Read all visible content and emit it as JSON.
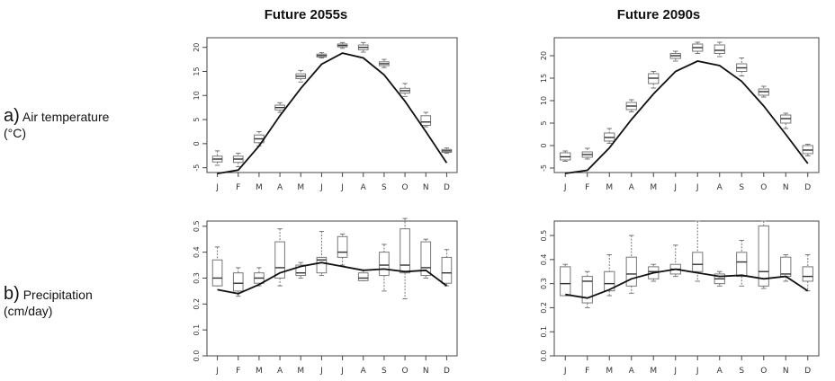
{
  "columns": [
    "Future 2055s",
    "Future 2090s"
  ],
  "rows": [
    {
      "prefix": "a)",
      "label": "Air temperature",
      "unit": "(°C)"
    },
    {
      "prefix": "b)",
      "label": "Precipitation",
      "unit": "(cm/day)"
    }
  ],
  "chart_data": [
    {
      "type": "box",
      "panel": "a-2055s",
      "categories": [
        "J",
        "F",
        "M",
        "A",
        "M",
        "J",
        "J",
        "A",
        "S",
        "O",
        "N",
        "D"
      ],
      "ylim": [
        -6,
        22
      ],
      "yticks": [
        -5,
        0,
        5,
        10,
        15,
        20
      ],
      "line": [
        -6.2,
        -5.5,
        -0.5,
        5.8,
        11.5,
        16.5,
        18.8,
        17.8,
        14.3,
        8.8,
        2.5,
        -4.0
      ],
      "boxes": [
        {
          "min": -4.5,
          "q1": -3.8,
          "median": -3.2,
          "q3": -2.6,
          "max": -1.5
        },
        {
          "min": -4.8,
          "q1": -3.9,
          "median": -3.2,
          "q3": -2.6,
          "max": -2.0
        },
        {
          "min": -0.5,
          "q1": 0.2,
          "median": 1.0,
          "q3": 1.8,
          "max": 2.5
        },
        {
          "min": 6.5,
          "q1": 7.0,
          "median": 7.5,
          "q3": 8.0,
          "max": 8.5
        },
        {
          "min": 12.8,
          "q1": 13.5,
          "median": 14.0,
          "q3": 14.5,
          "max": 15.2
        },
        {
          "min": 17.8,
          "q1": 18.0,
          "median": 18.3,
          "q3": 18.6,
          "max": 18.9
        },
        {
          "min": 19.8,
          "q1": 20.1,
          "median": 20.4,
          "q3": 20.7,
          "max": 21.0
        },
        {
          "min": 19.0,
          "q1": 19.5,
          "median": 20.0,
          "q3": 20.5,
          "max": 21.0
        },
        {
          "min": 15.8,
          "q1": 16.2,
          "median": 16.6,
          "q3": 17.0,
          "max": 17.5
        },
        {
          "min": 9.8,
          "q1": 10.5,
          "median": 11.0,
          "q3": 11.5,
          "max": 12.5
        },
        {
          "min": 3.5,
          "q1": 3.8,
          "median": 4.5,
          "q3": 5.8,
          "max": 6.5
        },
        {
          "min": -2.0,
          "q1": -1.8,
          "median": -1.5,
          "q3": -1.2,
          "max": -0.9
        }
      ]
    },
    {
      "type": "box",
      "panel": "a-2090s",
      "categories": [
        "J",
        "F",
        "M",
        "A",
        "M",
        "J",
        "J",
        "A",
        "S",
        "O",
        "N",
        "D"
      ],
      "ylim": [
        -6,
        24
      ],
      "yticks": [
        -5,
        0,
        5,
        10,
        15,
        20
      ],
      "line": [
        -6.2,
        -5.5,
        -0.5,
        5.8,
        11.5,
        16.5,
        18.8,
        17.8,
        14.3,
        8.8,
        2.5,
        -4.0
      ],
      "boxes": [
        {
          "min": -3.5,
          "q1": -3.2,
          "median": -2.5,
          "q3": -1.6,
          "max": -1.2
        },
        {
          "min": -3.0,
          "q1": -2.6,
          "median": -2.0,
          "q3": -1.4,
          "max": -0.6
        },
        {
          "min": 0.5,
          "q1": 1.0,
          "median": 1.8,
          "q3": 2.8,
          "max": 3.8
        },
        {
          "min": 7.5,
          "q1": 8.0,
          "median": 8.8,
          "q3": 9.6,
          "max": 10.2
        },
        {
          "min": 12.8,
          "q1": 13.8,
          "median": 15.0,
          "q3": 16.0,
          "max": 16.5
        },
        {
          "min": 18.8,
          "q1": 19.4,
          "median": 20.0,
          "q3": 20.5,
          "max": 21.0
        },
        {
          "min": 20.5,
          "q1": 21.0,
          "median": 21.8,
          "q3": 22.6,
          "max": 23.0
        },
        {
          "min": 19.8,
          "q1": 20.5,
          "median": 21.2,
          "q3": 22.4,
          "max": 23.0
        },
        {
          "min": 15.5,
          "q1": 16.5,
          "median": 17.3,
          "q3": 18.2,
          "max": 19.5
        },
        {
          "min": 10.8,
          "q1": 11.2,
          "median": 12.0,
          "q3": 12.6,
          "max": 13.2
        },
        {
          "min": 3.8,
          "q1": 5.0,
          "median": 6.0,
          "q3": 6.8,
          "max": 7.2
        },
        {
          "min": -2.3,
          "q1": -1.8,
          "median": -1.0,
          "q3": 0.0,
          "max": 0.3
        }
      ]
    },
    {
      "type": "box",
      "panel": "b-2055s",
      "categories": [
        "J",
        "F",
        "M",
        "A",
        "M",
        "J",
        "J",
        "A",
        "S",
        "O",
        "N",
        "D"
      ],
      "ylim": [
        0,
        0.52
      ],
      "yticks": [
        0.0,
        0.1,
        0.2,
        0.3,
        0.4,
        0.5
      ],
      "line": [
        0.255,
        0.24,
        0.275,
        0.32,
        0.345,
        0.36,
        0.345,
        0.33,
        0.335,
        0.325,
        0.33,
        0.27
      ],
      "boxes": [
        {
          "min": 0.27,
          "q1": 0.27,
          "median": 0.3,
          "q3": 0.37,
          "max": 0.42
        },
        {
          "min": 0.23,
          "q1": 0.25,
          "median": 0.28,
          "q3": 0.32,
          "max": 0.34
        },
        {
          "min": 0.27,
          "q1": 0.28,
          "median": 0.3,
          "q3": 0.32,
          "max": 0.34
        },
        {
          "min": 0.27,
          "q1": 0.3,
          "median": 0.34,
          "q3": 0.44,
          "max": 0.49
        },
        {
          "min": 0.3,
          "q1": 0.31,
          "median": 0.32,
          "q3": 0.35,
          "max": 0.36
        },
        {
          "min": 0.31,
          "q1": 0.32,
          "median": 0.37,
          "q3": 0.38,
          "max": 0.48
        },
        {
          "min": 0.35,
          "q1": 0.38,
          "median": 0.4,
          "q3": 0.46,
          "max": 0.47
        },
        {
          "min": 0.29,
          "q1": 0.29,
          "median": 0.3,
          "q3": 0.32,
          "max": 0.33
        },
        {
          "min": 0.25,
          "q1": 0.31,
          "median": 0.35,
          "q3": 0.4,
          "max": 0.43
        },
        {
          "min": 0.22,
          "q1": 0.32,
          "median": 0.35,
          "q3": 0.49,
          "max": 0.53
        },
        {
          "min": 0.3,
          "q1": 0.31,
          "median": 0.34,
          "q3": 0.44,
          "max": 0.45
        },
        {
          "min": 0.27,
          "q1": 0.28,
          "median": 0.32,
          "q3": 0.38,
          "max": 0.41
        }
      ]
    },
    {
      "type": "box",
      "panel": "b-2090s",
      "categories": [
        "J",
        "F",
        "M",
        "A",
        "M",
        "J",
        "J",
        "A",
        "S",
        "O",
        "N",
        "D"
      ],
      "ylim": [
        0,
        0.56
      ],
      "yticks": [
        0.0,
        0.1,
        0.2,
        0.3,
        0.4,
        0.5
      ],
      "line": [
        0.255,
        0.24,
        0.275,
        0.32,
        0.345,
        0.36,
        0.345,
        0.33,
        0.335,
        0.32,
        0.33,
        0.27
      ],
      "boxes": [
        {
          "min": 0.25,
          "q1": 0.25,
          "median": 0.3,
          "q3": 0.37,
          "max": 0.38
        },
        {
          "min": 0.2,
          "q1": 0.22,
          "median": 0.31,
          "q3": 0.33,
          "max": 0.35
        },
        {
          "min": 0.25,
          "q1": 0.27,
          "median": 0.3,
          "q3": 0.35,
          "max": 0.42
        },
        {
          "min": 0.26,
          "q1": 0.29,
          "median": 0.34,
          "q3": 0.41,
          "max": 0.5
        },
        {
          "min": 0.31,
          "q1": 0.32,
          "median": 0.35,
          "q3": 0.37,
          "max": 0.38
        },
        {
          "min": 0.33,
          "q1": 0.34,
          "median": 0.36,
          "q3": 0.38,
          "max": 0.46
        },
        {
          "min": 0.31,
          "q1": 0.35,
          "median": 0.38,
          "q3": 0.43,
          "max": 0.56
        },
        {
          "min": 0.29,
          "q1": 0.3,
          "median": 0.32,
          "q3": 0.34,
          "max": 0.35
        },
        {
          "min": 0.29,
          "q1": 0.33,
          "median": 0.39,
          "q3": 0.43,
          "max": 0.48
        },
        {
          "min": 0.28,
          "q1": 0.29,
          "median": 0.35,
          "q3": 0.54,
          "max": 0.56
        },
        {
          "min": 0.31,
          "q1": 0.33,
          "median": 0.34,
          "q3": 0.41,
          "max": 0.42
        },
        {
          "min": 0.27,
          "q1": 0.31,
          "median": 0.33,
          "q3": 0.37,
          "max": 0.42
        }
      ]
    }
  ]
}
